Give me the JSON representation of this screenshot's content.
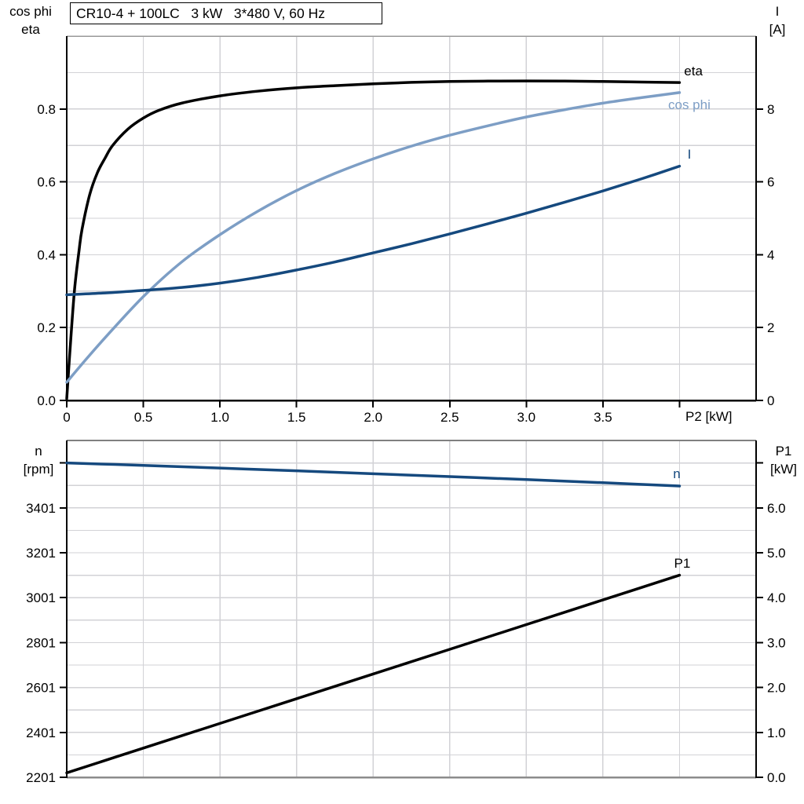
{
  "title": "CR10-4 + 100LC   3 kW   3*480 V, 60 Hz",
  "colors": {
    "eta": "#000000",
    "cos_phi": "#7d9ec5",
    "current": "#15497e",
    "speed": "#15497e",
    "p1": "#000000",
    "grid": "#d2d2d6",
    "frame_gray": "#8c8c8c"
  },
  "chart_data": [
    {
      "type": "line",
      "title": "CR10-4 + 100LC   3 kW   3*480 V, 60 Hz",
      "x_axis": {
        "label": "P2 [kW]",
        "min": 0,
        "max": 4.5,
        "grid_step": 0.5,
        "ticks": [
          {
            "v": 0,
            "label": "0"
          },
          {
            "v": 0.5,
            "label": "0.5"
          },
          {
            "v": 1.0,
            "label": "1.0"
          },
          {
            "v": 1.5,
            "label": "1.5"
          },
          {
            "v": 2.0,
            "label": "2.0"
          },
          {
            "v": 2.5,
            "label": "2.5"
          },
          {
            "v": 3.0,
            "label": "3.0"
          },
          {
            "v": 3.5,
            "label": "3.5"
          },
          {
            "v": 4.0,
            "label": ""
          }
        ]
      },
      "y_left": {
        "title_lines": [
          "cos phi",
          "eta"
        ],
        "min": 0,
        "max": 1.0,
        "grid_step": 0.1,
        "ticks": [
          {
            "v": 0.0,
            "label": "0.0"
          },
          {
            "v": 0.2,
            "label": "0.2"
          },
          {
            "v": 0.4,
            "label": "0.4"
          },
          {
            "v": 0.6,
            "label": "0.6"
          },
          {
            "v": 0.8,
            "label": "0.8"
          }
        ]
      },
      "y_right": {
        "title_lines": [
          "I",
          "[A]"
        ],
        "min": 0,
        "max": 10,
        "ticks": [
          {
            "v": 0,
            "label": "0"
          },
          {
            "v": 2,
            "label": "2"
          },
          {
            "v": 4,
            "label": "4"
          },
          {
            "v": 6,
            "label": "6"
          },
          {
            "v": 8,
            "label": "8"
          }
        ]
      },
      "series": [
        {
          "name": "eta",
          "axis": "left",
          "color": "#000000",
          "label": {
            "text": "eta",
            "x": 4.03,
            "y": 0.905,
            "anchor": "start"
          },
          "points": [
            [
              0,
              0.005
            ],
            [
              0.02,
              0.13
            ],
            [
              0.05,
              0.3
            ],
            [
              0.08,
              0.41
            ],
            [
              0.1,
              0.47
            ],
            [
              0.15,
              0.565
            ],
            [
              0.2,
              0.625
            ],
            [
              0.25,
              0.665
            ],
            [
              0.3,
              0.7
            ],
            [
              0.4,
              0.745
            ],
            [
              0.5,
              0.775
            ],
            [
              0.6,
              0.796
            ],
            [
              0.75,
              0.816
            ],
            [
              1.0,
              0.836
            ],
            [
              1.25,
              0.849
            ],
            [
              1.5,
              0.858
            ],
            [
              1.75,
              0.864
            ],
            [
              2.0,
              0.869
            ],
            [
              2.25,
              0.873
            ],
            [
              2.5,
              0.8755
            ],
            [
              2.75,
              0.8765
            ],
            [
              3.0,
              0.877
            ],
            [
              3.25,
              0.8765
            ],
            [
              3.5,
              0.8755
            ],
            [
              3.75,
              0.874
            ],
            [
              4.0,
              0.8725
            ]
          ]
        },
        {
          "name": "cos phi",
          "axis": "left",
          "color": "#7d9ec5",
          "label": {
            "text": "cos phi",
            "x": 4.064,
            "y": 0.8125,
            "anchor": "middle"
          },
          "points": [
            [
              0,
              0.05
            ],
            [
              0.1,
              0.1
            ],
            [
              0.25,
              0.172
            ],
            [
              0.5,
              0.285
            ],
            [
              0.75,
              0.38
            ],
            [
              1.0,
              0.455
            ],
            [
              1.25,
              0.52
            ],
            [
              1.5,
              0.576
            ],
            [
              1.75,
              0.623
            ],
            [
              2.0,
              0.663
            ],
            [
              2.25,
              0.698
            ],
            [
              2.5,
              0.728
            ],
            [
              2.75,
              0.754
            ],
            [
              3.0,
              0.778
            ],
            [
              3.25,
              0.798
            ],
            [
              3.5,
              0.816
            ],
            [
              3.75,
              0.831
            ],
            [
              4.0,
              0.845
            ]
          ]
        },
        {
          "name": "I",
          "axis": "right",
          "color": "#15497e",
          "label": {
            "text": "I",
            "x": 4.064,
            "y": 6.77,
            "anchor": "middle"
          },
          "points": [
            [
              0,
              2.9
            ],
            [
              0.25,
              2.95
            ],
            [
              0.5,
              3.02
            ],
            [
              0.75,
              3.1
            ],
            [
              1.0,
              3.22
            ],
            [
              1.25,
              3.38
            ],
            [
              1.5,
              3.58
            ],
            [
              1.75,
              3.8
            ],
            [
              2.0,
              4.05
            ],
            [
              2.25,
              4.3
            ],
            [
              2.5,
              4.57
            ],
            [
              2.75,
              4.85
            ],
            [
              3.0,
              5.14
            ],
            [
              3.25,
              5.44
            ],
            [
              3.5,
              5.75
            ],
            [
              3.75,
              6.08
            ],
            [
              4.0,
              6.43
            ]
          ]
        }
      ]
    },
    {
      "type": "line",
      "x_axis": {
        "label": "",
        "min": 0,
        "max": 4.5,
        "grid_step": 0.5,
        "ticks": []
      },
      "y_left": {
        "title_lines": [
          "n",
          "[rpm]"
        ],
        "min": 2201,
        "max": 3701,
        "grid_step": 100,
        "ticks": [
          {
            "v": 2201,
            "label": "2201"
          },
          {
            "v": 2401,
            "label": "2401"
          },
          {
            "v": 2601,
            "label": "2601"
          },
          {
            "v": 2801,
            "label": "2801"
          },
          {
            "v": 3001,
            "label": "3001"
          },
          {
            "v": 3201,
            "label": "3201"
          },
          {
            "v": 3401,
            "label": "3401"
          },
          {
            "v": 3601,
            "label": ""
          }
        ]
      },
      "y_right": {
        "title_lines": [
          "P1",
          "[kW]"
        ],
        "min": 0,
        "max": 7.5,
        "ticks": [
          {
            "v": 0,
            "label": "0.0"
          },
          {
            "v": 1,
            "label": "1.0"
          },
          {
            "v": 2,
            "label": "2.0"
          },
          {
            "v": 3,
            "label": "3.0"
          },
          {
            "v": 4,
            "label": "4.0"
          },
          {
            "v": 5,
            "label": "5.0"
          },
          {
            "v": 6,
            "label": "6.0"
          },
          {
            "v": 7,
            "label": ""
          }
        ]
      },
      "series": [
        {
          "name": "n",
          "axis": "left",
          "color": "#15497e",
          "label": {
            "text": "n",
            "x": 3.982,
            "y": 3554,
            "anchor": "middle"
          },
          "points": [
            [
              0,
              3601
            ],
            [
              0.5,
              3590
            ],
            [
              1.0,
              3578
            ],
            [
              1.5,
              3566
            ],
            [
              2.0,
              3553
            ],
            [
              2.5,
              3540
            ],
            [
              3.0,
              3527
            ],
            [
              3.5,
              3513
            ],
            [
              4.0,
              3498
            ]
          ]
        },
        {
          "name": "P1",
          "axis": "right",
          "color": "#000000",
          "label": {
            "text": "P1",
            "x": 4.018,
            "y": 4.77,
            "anchor": "middle"
          },
          "points": [
            [
              0,
              0.1
            ],
            [
              0.5,
              0.65
            ],
            [
              1.0,
              1.2
            ],
            [
              1.5,
              1.75
            ],
            [
              2.0,
              2.3
            ],
            [
              2.5,
              2.85
            ],
            [
              3.0,
              3.4
            ],
            [
              3.5,
              3.95
            ],
            [
              4.0,
              4.5
            ]
          ]
        }
      ]
    }
  ]
}
